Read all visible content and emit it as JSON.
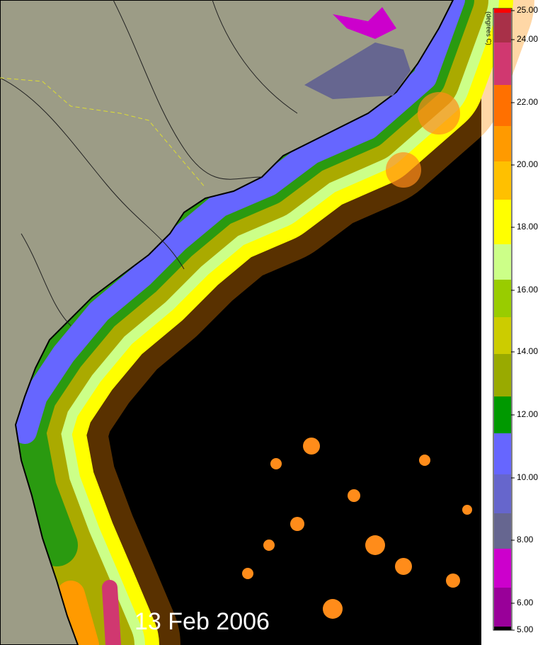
{
  "date": "13 Feb 2006",
  "colorbar": {
    "unit": "(degrees C)",
    "ticks": [
      "25.00",
      "24.00",
      "22.00",
      "20.00",
      "18.00",
      "16.00",
      "14.00",
      "12.00",
      "10.00",
      "8.00",
      "6.00",
      "5.00"
    ],
    "colors": [
      "#ff0000",
      "#a83048",
      "#d03870",
      "#ff7000",
      "#ff9a00",
      "#ffc000",
      "#ffff00",
      "#ccff88",
      "#99cc00",
      "#cccc00",
      "#99aa00",
      "#009900",
      "#6666ff",
      "#6666cc",
      "#666690",
      "#cc00cc",
      "#990099",
      "#000000"
    ]
  }
}
